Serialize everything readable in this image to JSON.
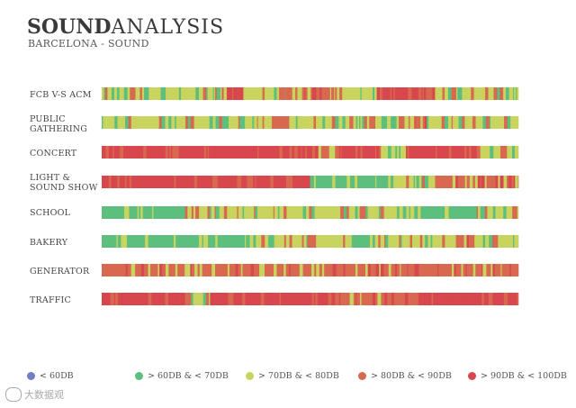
{
  "header": {
    "title_bold": "SOUND",
    "title_light": "ANALYSIS",
    "subtitle": "BARCELONA - SOUND"
  },
  "colors": {
    "lt60": "#6f7fc4",
    "60_70": "#5cbf7d",
    "70_80": "#c9d45e",
    "80_90": "#d8684f",
    "90_100": "#d8474d"
  },
  "chart_data": {
    "type": "heatmap",
    "title": "SOUND ANALYSIS",
    "subtitle": "BARCELONA - SOUND",
    "x_axis": "time (unlabeled)",
    "rows": [
      {
        "label": "FCB V-S ACM",
        "segments": [
          [
            "70_80",
            0.3
          ],
          [
            "90_100",
            0.04
          ],
          [
            "70_80",
            0.1
          ],
          [
            "80_90",
            0.12
          ],
          [
            "70_80",
            0.1
          ],
          [
            "90_100",
            0.14
          ],
          [
            "70_80",
            0.2
          ]
        ]
      },
      {
        "label": "PUBLIC GATHERING",
        "segments": [
          [
            "70_80",
            0.4
          ],
          [
            "80_90",
            0.05
          ],
          [
            "70_80",
            0.3
          ],
          [
            "80_90",
            0.03
          ],
          [
            "70_80",
            0.22
          ]
        ]
      },
      {
        "label": "CONCERT",
        "segments": [
          [
            "90_100",
            0.52
          ],
          [
            "80_90",
            0.05
          ],
          [
            "90_100",
            0.1
          ],
          [
            "70_80",
            0.06
          ],
          [
            "90_100",
            0.17
          ],
          [
            "70_80",
            0.1
          ]
        ]
      },
      {
        "label": "LIGHT & SOUND SHOW",
        "segments": [
          [
            "90_100",
            0.5
          ],
          [
            "60_70",
            0.2
          ],
          [
            "70_80",
            0.1
          ],
          [
            "80_90",
            0.2
          ]
        ]
      },
      {
        "label": "SCHOOL",
        "segments": [
          [
            "60_70",
            0.2
          ],
          [
            "70_80",
            0.55
          ],
          [
            "60_70",
            0.15
          ],
          [
            "70_80",
            0.1
          ]
        ]
      },
      {
        "label": "BAKERY",
        "segments": [
          [
            "60_70",
            0.35
          ],
          [
            "70_80",
            0.25
          ],
          [
            "60_70",
            0.05
          ],
          [
            "70_80",
            0.2
          ],
          [
            "80_90",
            0.05
          ],
          [
            "70_80",
            0.1
          ]
        ]
      },
      {
        "label": "GENERATOR",
        "segments": [
          [
            "80_90",
            1.0
          ]
        ]
      },
      {
        "label": "TRAFFIC",
        "segments": [
          [
            "90_100",
            0.2
          ],
          [
            "70_80",
            0.06
          ],
          [
            "90_100",
            0.3
          ],
          [
            "80_90",
            0.2
          ],
          [
            "90_100",
            0.24
          ]
        ]
      }
    ],
    "legend": [
      {
        "key": "lt60",
        "label": "< 60DB"
      },
      {
        "key": "60_70",
        "label": "> 60DB & < 70DB"
      },
      {
        "key": "70_80",
        "label": "> 70DB & < 80DB"
      },
      {
        "key": "80_90",
        "label": "> 80DB & < 90DB"
      },
      {
        "key": "90_100",
        "label": "> 90DB & < 100DB"
      }
    ]
  },
  "watermark": {
    "text": "大数据观"
  }
}
